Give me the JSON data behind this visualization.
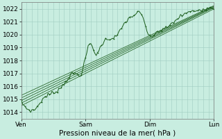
{
  "title": "",
  "xlabel": "Pression niveau de la mer( hPa )",
  "bg_color": "#c8ede0",
  "grid_color": "#a0ccc0",
  "line_color": "#1a5c1a",
  "ylim": [
    1013.5,
    1022.5
  ],
  "xlim": [
    0,
    72
  ],
  "yticks": [
    1014,
    1015,
    1016,
    1017,
    1018,
    1019,
    1020,
    1021,
    1022
  ],
  "xtick_positions": [
    0,
    24,
    48,
    72
  ],
  "xtick_labels": [
    "Ven",
    "Sam",
    "Dim",
    "Lun"
  ],
  "tick_fontsize": 6.5,
  "xlabel_fontsize": 7.5
}
